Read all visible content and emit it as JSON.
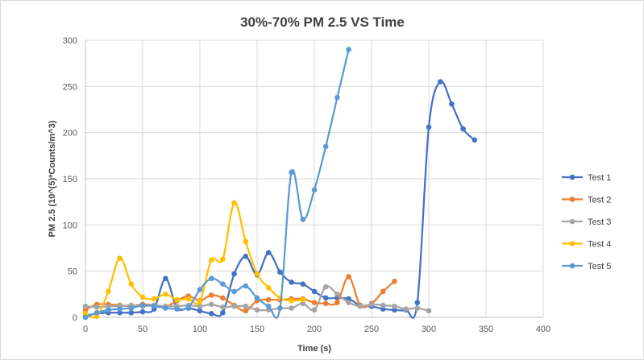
{
  "chart_data": {
    "type": "scatter",
    "title": "30%-70% PM 2.5 VS Time",
    "xlabel": "Time (s)",
    "ylabel": "PM 2.5 (10^(5)*Counts/m^3)",
    "xlim": [
      0,
      400
    ],
    "ylim": [
      0,
      300
    ],
    "x_ticks": [
      0,
      50,
      100,
      150,
      200,
      250,
      300,
      350,
      400
    ],
    "y_ticks": [
      0,
      50,
      100,
      150,
      200,
      250,
      300
    ],
    "grid": true,
    "smooth_lines": true,
    "legend_position": "right",
    "series": [
      {
        "name": "Test 1",
        "color": "#4472C4",
        "x": [
          0,
          10,
          20,
          30,
          40,
          50,
          60,
          70,
          80,
          90,
          100,
          110,
          120,
          130,
          140,
          150,
          160,
          170,
          180,
          190,
          200,
          210,
          220,
          230,
          240,
          250,
          260,
          270,
          280,
          290,
          300,
          310,
          320,
          330,
          340
        ],
        "y": [
          2,
          4,
          5,
          5,
          5,
          6,
          9,
          42,
          10,
          10,
          7,
          4,
          5,
          47,
          66,
          46,
          70,
          49,
          38,
          36,
          28,
          21,
          21,
          20,
          13,
          12,
          9,
          8,
          8,
          16,
          206,
          255,
          231,
          204,
          192
        ]
      },
      {
        "name": "Test 2",
        "color": "#ED7D31",
        "x": [
          0,
          10,
          20,
          30,
          40,
          50,
          60,
          70,
          80,
          90,
          100,
          110,
          120,
          130,
          140,
          150,
          160,
          170,
          180,
          190,
          200,
          210,
          220,
          230,
          240,
          250,
          260,
          270
        ],
        "y": [
          8,
          14,
          14,
          13,
          12,
          14,
          13,
          11,
          18,
          23,
          18,
          24,
          21,
          13,
          7,
          18,
          19,
          19,
          20,
          20,
          16,
          15,
          16,
          44,
          13,
          15,
          28,
          39
        ]
      },
      {
        "name": "Test 3",
        "color": "#A5A5A5",
        "x": [
          0,
          10,
          20,
          30,
          40,
          50,
          60,
          70,
          80,
          90,
          100,
          110,
          120,
          130,
          140,
          150,
          160,
          170,
          180,
          190,
          200,
          210,
          220,
          230,
          240,
          250,
          260,
          270,
          280,
          290,
          300
        ],
        "y": [
          12,
          11,
          12,
          12,
          13,
          12,
          13,
          12,
          12,
          13,
          12,
          14,
          11,
          12,
          12,
          8,
          8,
          10,
          10,
          15,
          8,
          33,
          25,
          16,
          12,
          14,
          13,
          12,
          9,
          10,
          7
        ]
      },
      {
        "name": "Test 4",
        "color": "#FFC000",
        "x": [
          0,
          10,
          20,
          30,
          40,
          50,
          60,
          70,
          80,
          90,
          100,
          110,
          120,
          130,
          140,
          150,
          160,
          170,
          180,
          190
        ],
        "y": [
          4,
          1,
          28,
          64,
          36,
          22,
          20,
          25,
          19,
          20,
          17,
          62,
          63,
          124,
          82,
          47,
          32,
          21,
          18,
          19
        ]
      },
      {
        "name": "Test 5",
        "color": "#5B9BD5",
        "x": [
          0,
          10,
          20,
          30,
          40,
          50,
          60,
          70,
          80,
          90,
          100,
          110,
          120,
          130,
          140,
          150,
          160,
          170,
          180,
          190,
          200,
          210,
          220,
          230
        ],
        "y": [
          0,
          5,
          8,
          9,
          10,
          13,
          12,
          10,
          9,
          11,
          30,
          42,
          36,
          28,
          34,
          21,
          12,
          10,
          157,
          106,
          138,
          185,
          238,
          290
        ]
      }
    ]
  }
}
